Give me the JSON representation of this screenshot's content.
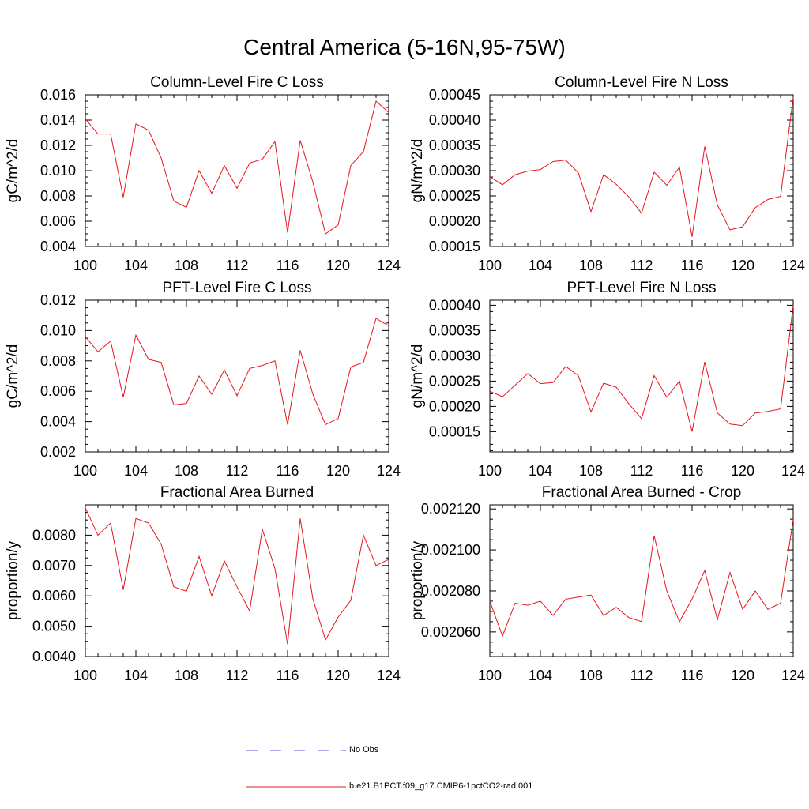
{
  "page": {
    "title": "Central America (5-16N,95-75W)"
  },
  "legend": {
    "entries": [
      {
        "label": "No Obs",
        "color": "#5b5bd6",
        "dash": true
      },
      {
        "label": "b.e21.B1PCT.f09_g17.CMIP6-1pctCO2-rad.001",
        "color": "#e8141b",
        "dash": false
      }
    ]
  },
  "chart_data": [
    {
      "type": "line",
      "title": "Column-Level Fire C Loss",
      "ylabel": "gC/m^2/d",
      "xlim": [
        100,
        124
      ],
      "ylim": [
        0.004,
        0.016
      ],
      "x_ticks": [
        "100",
        "104",
        "108",
        "112",
        "116",
        "120",
        "124"
      ],
      "y_ticks": [
        "0.004",
        "0.006",
        "0.008",
        "0.010",
        "0.012",
        "0.014",
        "0.016"
      ],
      "series": [
        {
          "color": "#e8141b",
          "x": [
            100,
            101,
            102,
            103,
            104,
            105,
            106,
            107,
            108,
            109,
            110,
            111,
            112,
            113,
            114,
            115,
            116,
            117,
            118,
            119,
            120,
            121,
            122,
            123,
            124
          ],
          "y": [
            0.0141,
            0.0129,
            0.0129,
            0.0079,
            0.0137,
            0.0132,
            0.011,
            0.0076,
            0.0071,
            0.01,
            0.0082,
            0.0104,
            0.0086,
            0.0106,
            0.0109,
            0.0123,
            0.0051,
            0.0124,
            0.0091,
            0.005,
            0.0057,
            0.0104,
            0.0115,
            0.0155,
            0.0146
          ]
        }
      ]
    },
    {
      "type": "line",
      "title": "Column-Level Fire N Loss",
      "ylabel": "gN/m^2/d",
      "xlim": [
        100,
        124
      ],
      "ylim": [
        0.00015,
        0.00045
      ],
      "x_ticks": [
        "100",
        "104",
        "108",
        "112",
        "116",
        "120",
        "124"
      ],
      "y_ticks": [
        "0.00015",
        "0.00020",
        "0.00025",
        "0.00030",
        "0.00035",
        "0.00040",
        "0.00045"
      ],
      "series": [
        {
          "color": "#e8141b",
          "x": [
            100,
            101,
            102,
            103,
            104,
            105,
            106,
            107,
            108,
            109,
            110,
            111,
            112,
            113,
            114,
            115,
            116,
            117,
            118,
            119,
            120,
            121,
            122,
            123,
            124
          ],
          "y": [
            0.000288,
            0.000272,
            0.000292,
            0.000299,
            0.000302,
            0.000318,
            0.000321,
            0.000296,
            0.000219,
            0.000292,
            0.000273,
            0.000248,
            0.000216,
            0.000297,
            0.000271,
            0.000307,
            0.000169,
            0.000348,
            0.000232,
            0.000183,
            0.000189,
            0.000227,
            0.000243,
            0.000249,
            0.000445
          ]
        }
      ]
    },
    {
      "type": "line",
      "title": "PFT-Level Fire C Loss",
      "ylabel": "gC/m^2/d",
      "xlim": [
        100,
        124
      ],
      "ylim": [
        0.002,
        0.012
      ],
      "x_ticks": [
        "100",
        "104",
        "108",
        "112",
        "116",
        "120",
        "124"
      ],
      "y_ticks": [
        "0.002",
        "0.004",
        "0.006",
        "0.008",
        "0.010",
        "0.012"
      ],
      "series": [
        {
          "color": "#e8141b",
          "x": [
            100,
            101,
            102,
            103,
            104,
            105,
            106,
            107,
            108,
            109,
            110,
            111,
            112,
            113,
            114,
            115,
            116,
            117,
            118,
            119,
            120,
            121,
            122,
            123,
            124
          ],
          "y": [
            0.0096,
            0.0086,
            0.0093,
            0.0056,
            0.0097,
            0.0081,
            0.0079,
            0.0051,
            0.0052,
            0.007,
            0.0058,
            0.0074,
            0.0057,
            0.0075,
            0.0077,
            0.008,
            0.0038,
            0.0087,
            0.0058,
            0.0038,
            0.0042,
            0.0076,
            0.0079,
            0.0108,
            0.0103
          ]
        }
      ]
    },
    {
      "type": "line",
      "title": "PFT-Level Fire N Loss",
      "ylabel": "gN/m^2/d",
      "xlim": [
        100,
        124
      ],
      "ylim": [
        0.00011,
        0.00041
      ],
      "x_ticks": [
        "100",
        "104",
        "108",
        "112",
        "116",
        "120",
        "124"
      ],
      "y_ticks": [
        "0.00015",
        "0.00020",
        "0.00025",
        "0.00030",
        "0.00035",
        "0.00040"
      ],
      "series": [
        {
          "color": "#e8141b",
          "x": [
            100,
            101,
            102,
            103,
            104,
            105,
            106,
            107,
            108,
            109,
            110,
            111,
            112,
            113,
            114,
            115,
            116,
            117,
            118,
            119,
            120,
            121,
            122,
            123,
            124
          ],
          "y": [
            0.00023,
            0.000219,
            0.000242,
            0.000265,
            0.000245,
            0.000247,
            0.000279,
            0.000261,
            0.000189,
            0.000246,
            0.000238,
            0.000205,
            0.000176,
            0.000261,
            0.000218,
            0.00025,
            0.00015,
            0.000288,
            0.000187,
            0.000165,
            0.000162,
            0.000187,
            0.00019,
            0.000195,
            0.0004
          ]
        }
      ]
    },
    {
      "type": "line",
      "title": "Fractional Area Burned",
      "ylabel": "proportion/y",
      "xlim": [
        100,
        124
      ],
      "ylim": [
        0.004,
        0.009
      ],
      "x_ticks": [
        "100",
        "104",
        "108",
        "112",
        "116",
        "120",
        "124"
      ],
      "y_ticks": [
        "0.0040",
        "0.0050",
        "0.0060",
        "0.0070",
        "0.0080"
      ],
      "series": [
        {
          "color": "#e8141b",
          "x": [
            100,
            101,
            102,
            103,
            104,
            105,
            106,
            107,
            108,
            109,
            110,
            111,
            112,
            113,
            114,
            115,
            116,
            117,
            118,
            119,
            120,
            121,
            122,
            123,
            124
          ],
          "y": [
            0.0089,
            0.008,
            0.0084,
            0.0062,
            0.00855,
            0.0084,
            0.0077,
            0.0063,
            0.00615,
            0.0073,
            0.006,
            0.00715,
            0.0063,
            0.0055,
            0.0082,
            0.0069,
            0.0044,
            0.00855,
            0.0059,
            0.00455,
            0.0053,
            0.00585,
            0.008,
            0.007,
            0.0072
          ]
        }
      ]
    },
    {
      "type": "line",
      "title": "Fractional Area Burned - Crop",
      "ylabel": "proportion/y",
      "xlim": [
        100,
        124
      ],
      "ylim": [
        0.002048,
        0.002122
      ],
      "x_ticks": [
        "100",
        "104",
        "108",
        "112",
        "116",
        "120",
        "124"
      ],
      "y_ticks": [
        "0.002060",
        "0.002080",
        "0.002100",
        "0.002120"
      ],
      "series": [
        {
          "color": "#e8141b",
          "x": [
            100,
            101,
            102,
            103,
            104,
            105,
            106,
            107,
            108,
            109,
            110,
            111,
            112,
            113,
            114,
            115,
            116,
            117,
            118,
            119,
            120,
            121,
            122,
            123,
            124
          ],
          "y": [
            0.002075,
            0.002058,
            0.002074,
            0.002073,
            0.002075,
            0.002068,
            0.002076,
            0.002077,
            0.002078,
            0.002068,
            0.002072,
            0.002067,
            0.002065,
            0.002107,
            0.00208,
            0.002065,
            0.002076,
            0.00209,
            0.002066,
            0.002089,
            0.002071,
            0.00208,
            0.002071,
            0.002074,
            0.002115
          ]
        }
      ]
    }
  ]
}
